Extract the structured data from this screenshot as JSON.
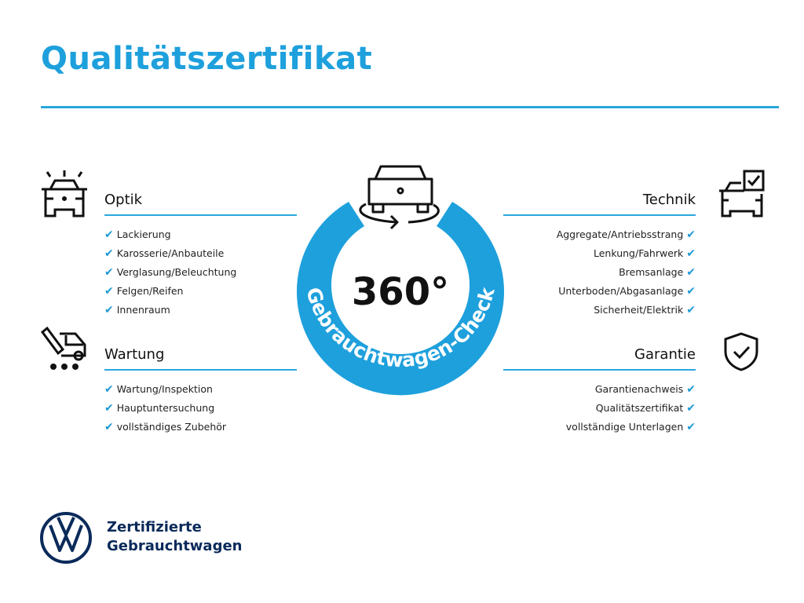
{
  "title": "Qualitätszertifikat",
  "center": {
    "big": "360°",
    "ring_text": "Gebrauchtwagen-Check",
    "ring_color": "#1ea0dc"
  },
  "sections": {
    "optik": {
      "title": "Optik",
      "icon": "car-lights-icon",
      "items": [
        "Lackierung",
        "Karosserie/Anbauteile",
        "Verglasung/Beleuchtung",
        "Felgen/Reifen",
        "Innenraum"
      ]
    },
    "wartung": {
      "title": "Wartung",
      "icon": "service-van-icon",
      "items": [
        "Wartung/Inspektion",
        "Hauptuntersuchung",
        "vollständiges Zubehör"
      ]
    },
    "technik": {
      "title": "Technik",
      "icon": "car-checkbox-icon",
      "items": [
        "Aggregate/Antriebsstrang",
        "Lenkung/Fahrwerk",
        "Bremsanlage",
        "Unterboden/Abgasanlage",
        "Sicherheit/Elektrik"
      ]
    },
    "garantie": {
      "title": "Garantie",
      "icon": "shield-check-icon",
      "items": [
        "Garantienachweis",
        "Qualitätszertifikat",
        "vollständige Unterlagen"
      ]
    }
  },
  "check_mark": "✔",
  "brand": {
    "line1": "Zertifizierte",
    "line2": "Gebrauchtwagen",
    "logo": "VW"
  }
}
